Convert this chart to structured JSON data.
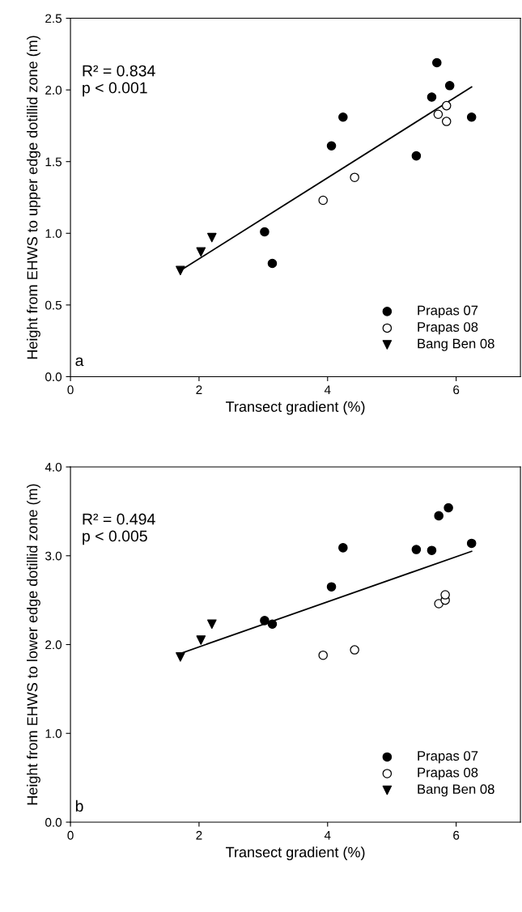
{
  "chart_data": [
    {
      "type": "scatter",
      "xlabel": "Transect gradient (%)",
      "ylabel": "Height from EHWS to upper edge dotillid zone (m)",
      "annotations": [
        "R² = 0.834",
        "p < 0.001",
        "a"
      ],
      "xlim": [
        0,
        7
      ],
      "xticks": [
        0,
        2,
        4,
        6
      ],
      "ylim": [
        0,
        2.5
      ],
      "yticks": [
        {
          "value": 0,
          "label": "0.0"
        },
        {
          "value": 0.5,
          "label": "0.5"
        },
        {
          "value": 1,
          "label": "1.0"
        },
        {
          "value": 1.5,
          "label": "1.5"
        },
        {
          "value": 2,
          "label": "2.0"
        },
        {
          "value": 2.5,
          "label": "2.5"
        }
      ],
      "grid": false,
      "legend": "bottom right",
      "series": [
        {
          "name": "Prapas 07",
          "color": "#000000",
          "marker": "circle",
          "x": [
            3.02,
            3.14,
            4.06,
            4.24,
            5.38,
            5.62,
            5.7,
            5.9,
            6.24
          ],
          "values": [
            1.01,
            0.79,
            1.61,
            1.81,
            1.54,
            1.95,
            2.19,
            2.03,
            1.81
          ]
        },
        {
          "name": "Prapas 08",
          "color": "#ffffff",
          "marker": "circle",
          "x": [
            3.93,
            4.42,
            5.72,
            5.85,
            5.85
          ],
          "values": [
            1.23,
            1.39,
            1.83,
            1.89,
            1.78
          ]
        },
        {
          "name": "Bang Ben 08",
          "color": "#000000",
          "marker": "triangle",
          "x": [
            1.71,
            2.03,
            2.2
          ],
          "values": [
            0.74,
            0.87,
            0.97
          ]
        },
        {
          "type": "line",
          "color": "#000000",
          "x": [
            1.71,
            6.24
          ],
          "values": [
            0.74,
            2.02
          ]
        }
      ]
    },
    {
      "type": "scatter",
      "xlabel": "Transect gradient (%)",
      "ylabel": "Height from EHWS to lower edge dotillid zone (m)",
      "annotations": [
        "R² = 0.494",
        "p < 0.005",
        "b"
      ],
      "xlim": [
        0,
        7
      ],
      "xticks": [
        0,
        2,
        4,
        6
      ],
      "ylim": [
        0,
        4
      ],
      "yticks": [
        {
          "value": 0,
          "label": "0.0"
        },
        {
          "value": 1,
          "label": "1.0"
        },
        {
          "value": 2,
          "label": "2.0"
        },
        {
          "value": 3,
          "label": "3.0"
        },
        {
          "value": 4,
          "label": "4.0"
        }
      ],
      "grid": false,
      "legend": "bottom right",
      "series": [
        {
          "name": "Prapas 07",
          "color": "#000000",
          "marker": "circle",
          "x": [
            3.02,
            3.14,
            4.06,
            4.24,
            5.38,
            5.62,
            5.73,
            5.88,
            6.24
          ],
          "values": [
            2.27,
            2.23,
            2.65,
            3.09,
            3.07,
            3.06,
            3.45,
            3.54,
            3.14
          ]
        },
        {
          "name": "Prapas 08",
          "color": "#ffffff",
          "marker": "circle",
          "x": [
            3.93,
            4.42,
            5.73,
            5.83,
            5.83
          ],
          "values": [
            1.88,
            1.94,
            2.46,
            2.5,
            2.56
          ]
        },
        {
          "name": "Bang Ben 08",
          "color": "#000000",
          "marker": "triangle",
          "x": [
            1.71,
            2.03,
            2.2
          ],
          "values": [
            1.86,
            2.05,
            2.23
          ]
        },
        {
          "type": "line",
          "color": "#000000",
          "x": [
            1.71,
            6.24
          ],
          "values": [
            1.9,
            3.05
          ]
        }
      ]
    }
  ]
}
